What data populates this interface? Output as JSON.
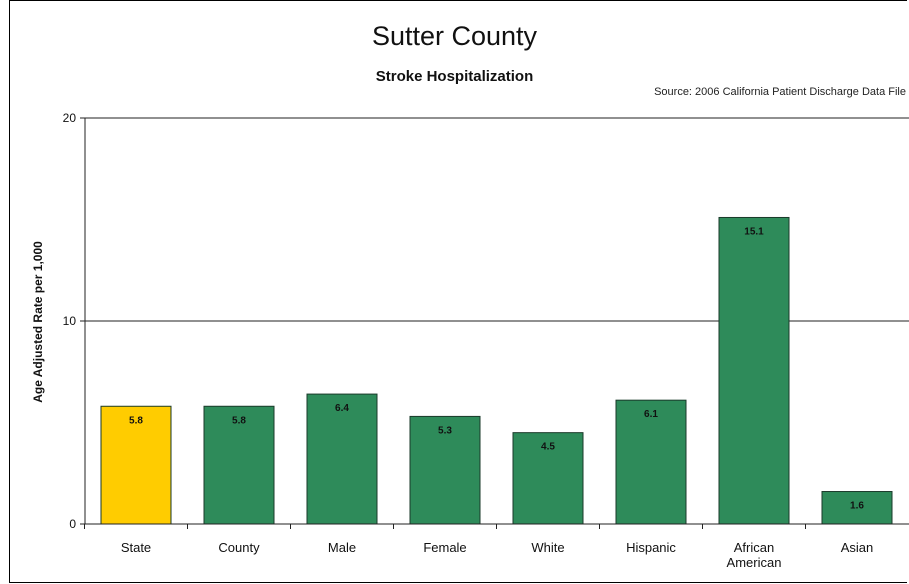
{
  "chart_data": {
    "type": "bar",
    "title": "Sutter County",
    "subtitle": "Stroke Hospitalization",
    "source": "Source: 2006 California Patient Discharge Data File",
    "ylabel": "Age Adjusted Rate per 1,000",
    "xlabel": "",
    "ylim": [
      0,
      20
    ],
    "yticks": [
      "0",
      "10",
      "20"
    ],
    "categories": [
      "State",
      "County",
      "Male",
      "Female",
      "White",
      "Hispanic",
      "African American",
      "Asian"
    ],
    "values": [
      5.8,
      5.8,
      6.4,
      5.3,
      4.5,
      6.1,
      15.1,
      1.6
    ],
    "data_labels": [
      "5.8",
      "5.8",
      "6.4",
      "5.3",
      "4.5",
      "6.1",
      "15.1",
      "1.6"
    ],
    "bar_colors": [
      "#ffcc00",
      "#2e8b5a",
      "#2e8b5a",
      "#2e8b5a",
      "#2e8b5a",
      "#2e8b5a",
      "#2e8b5a",
      "#2e8b5a"
    ],
    "grid": true,
    "legend": "none"
  }
}
